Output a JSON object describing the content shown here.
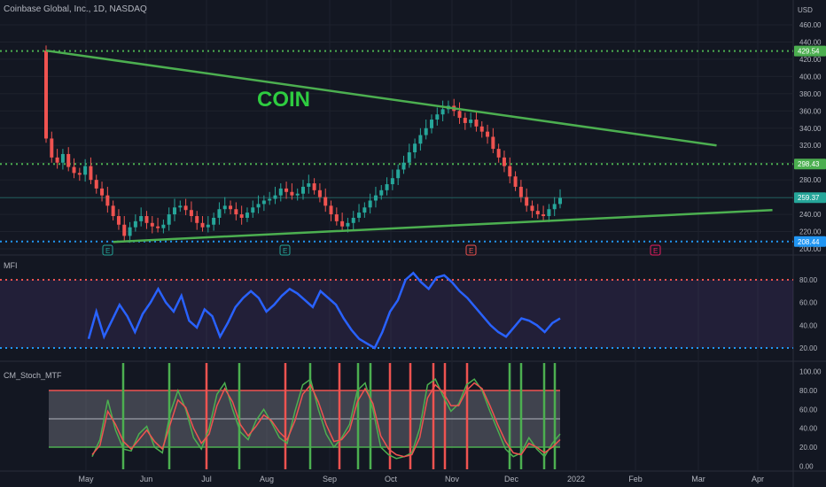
{
  "header": {
    "symbol_title": "Coinbase Global, Inc., 1D, NASDAQ",
    "currency": "USD"
  },
  "colors": {
    "background": "#131722",
    "grid": "#1e222d",
    "up": "#26a69a",
    "down": "#ef5350",
    "trendline": "#4caf50",
    "level_green": "#4caf50",
    "level_blue": "#2196f3",
    "mfi": "#2962ff",
    "mfi_band": "#7e57c2",
    "stoch_fast": "#4caf50",
    "stoch_slow": "#ef5350"
  },
  "annotations": {
    "coin_label": "COIN",
    "earnings_marker": "E"
  },
  "price_axis": {
    "ticks": [
      "460.00",
      "440.00",
      "420.00",
      "400.00",
      "380.00",
      "360.00",
      "340.00",
      "320.00",
      "300.00",
      "280.00",
      "260.00",
      "240.00",
      "220.00",
      "200.00"
    ],
    "labels": [
      {
        "text": "429.54",
        "color": "#4caf50"
      },
      {
        "text": "298.43",
        "color": "#4caf50"
      },
      {
        "text": "259.37",
        "color": "#26a69a"
      },
      {
        "text": "208.44",
        "color": "#2196f3"
      }
    ]
  },
  "mfi_panel": {
    "title": "MFI",
    "ticks": [
      "80.00",
      "60.00",
      "40.00",
      "20.00"
    ]
  },
  "stoch_panel": {
    "title": "CM_Stoch_MTF",
    "ticks": [
      "100.00",
      "80.00",
      "60.00",
      "40.00",
      "20.00",
      "0.00"
    ]
  },
  "time_axis": {
    "labels": [
      "May",
      "Jun",
      "Jul",
      "Aug",
      "Sep",
      "Oct",
      "Nov",
      "Dec",
      "2022",
      "Feb",
      "Mar",
      "Apr"
    ]
  },
  "chart_data": [
    {
      "type": "candlestick",
      "title": "Coinbase Global, Inc., 1D, NASDAQ",
      "ylim": [
        200,
        460
      ],
      "levels": [
        429.54,
        298.43,
        259.37,
        208.44
      ],
      "close_series": [
        328,
        306,
        300,
        310,
        295,
        288,
        286,
        296,
        280,
        270,
        262,
        250,
        238,
        228,
        215,
        225,
        232,
        238,
        230,
        226,
        224,
        228,
        240,
        248,
        250,
        245,
        238,
        230,
        225,
        228,
        236,
        246,
        250,
        246,
        240,
        236,
        242,
        248,
        252,
        256,
        258,
        262,
        270,
        266,
        262,
        264,
        272,
        276,
        268,
        260,
        250,
        240,
        232,
        226,
        230,
        236,
        242,
        248,
        256,
        262,
        268,
        275,
        282,
        292,
        300,
        312,
        322,
        332,
        340,
        350,
        356,
        362,
        366,
        360,
        352,
        346,
        350,
        342,
        336,
        330,
        316,
        306,
        296,
        284,
        272,
        260,
        250,
        244,
        240,
        238,
        246,
        252,
        259
      ],
      "trendlines": [
        {
          "from": [
            0,
            430
          ],
          "to": [
            120,
            320
          ]
        },
        {
          "from": [
            12,
            208
          ],
          "to": [
            130,
            245
          ]
        }
      ]
    },
    {
      "type": "line",
      "title": "MFI",
      "ylim": [
        10,
        90
      ],
      "bands": [
        20,
        80
      ],
      "values": [
        28,
        52,
        30,
        44,
        58,
        48,
        34,
        50,
        60,
        72,
        60,
        52,
        66,
        44,
        38,
        54,
        48,
        30,
        42,
        56,
        64,
        70,
        64,
        52,
        58,
        66,
        72,
        68,
        62,
        56,
        70,
        64,
        58,
        46,
        36,
        28,
        24,
        20,
        34,
        52,
        62,
        80,
        86,
        78,
        72,
        82,
        84,
        78,
        70,
        64,
        56,
        48,
        40,
        34,
        30,
        38,
        46,
        44,
        40,
        34,
        42,
        46
      ]
    },
    {
      "type": "line",
      "title": "CM_Stoch_MTF",
      "ylim": [
        0,
        100
      ],
      "bands": [
        20,
        80
      ],
      "series": [
        {
          "values": [
            10,
            28,
            70,
            38,
            18,
            16,
            34,
            42,
            20,
            14,
            56,
            80,
            60,
            30,
            18,
            40,
            76,
            88,
            60,
            36,
            28,
            48,
            60,
            46,
            30,
            24,
            58,
            86,
            92,
            60,
            34,
            20,
            30,
            44,
            80,
            88,
            60,
            20,
            12,
            8,
            10,
            14,
            40,
            86,
            92,
            74,
            58,
            66,
            86,
            92,
            80,
            58,
            38,
            18,
            10,
            14,
            30,
            18,
            10,
            24,
            34
          ]
        },
        {
          "values": [
            12,
            22,
            58,
            44,
            26,
            18,
            28,
            38,
            26,
            18,
            44,
            70,
            62,
            40,
            24,
            34,
            64,
            82,
            68,
            44,
            32,
            42,
            54,
            48,
            36,
            28,
            48,
            76,
            86,
            68,
            44,
            26,
            28,
            38,
            68,
            82,
            66,
            32,
            18,
            12,
            10,
            12,
            30,
            72,
            86,
            78,
            64,
            64,
            80,
            88,
            82,
            64,
            44,
            26,
            14,
            12,
            24,
            20,
            14,
            20,
            28
          ]
        }
      ]
    }
  ]
}
